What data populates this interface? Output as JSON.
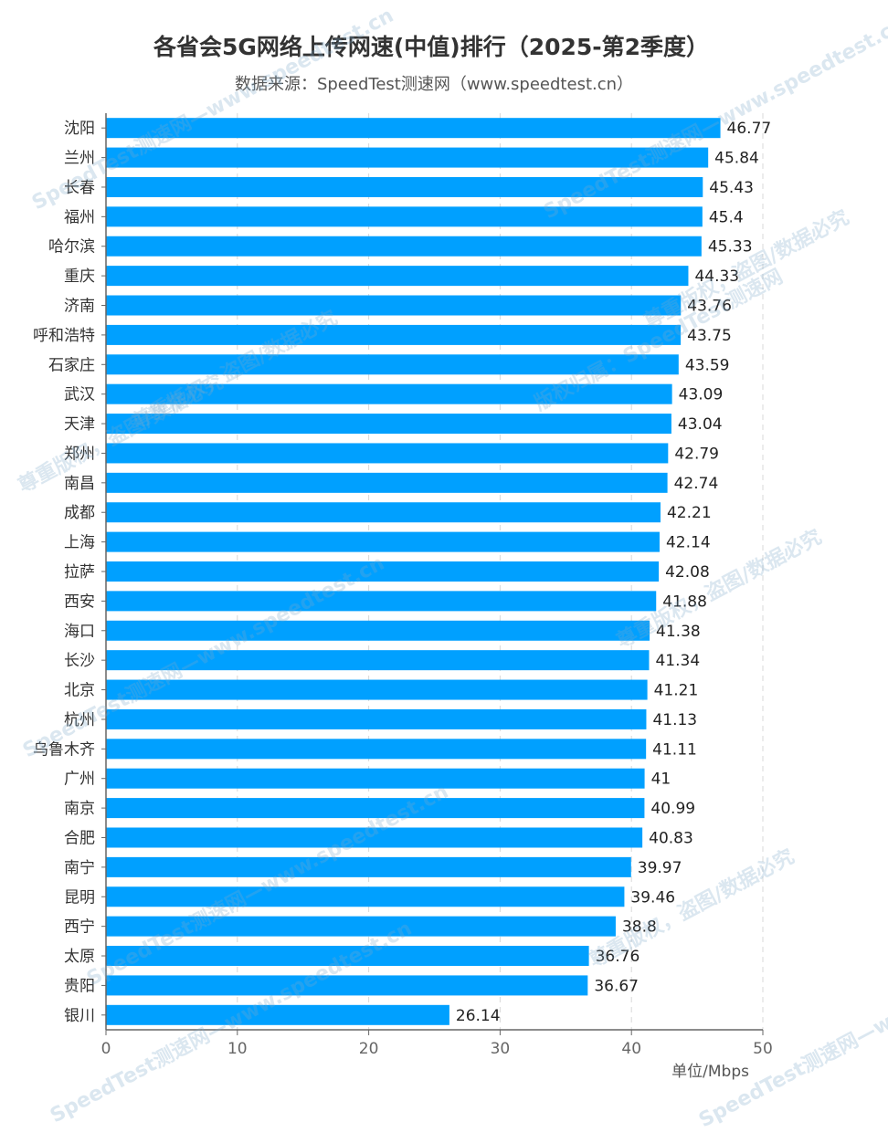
{
  "chart_data": {
    "type": "bar",
    "orientation": "horizontal",
    "title": "各省会5G网络上传网速(中值)排行（2025-第2季度）",
    "subtitle": "数据来源：SpeedTest测速网（www.speedtest.cn）",
    "unit_label": "单位/Mbps",
    "categories": [
      "沈阳",
      "兰州",
      "长春",
      "福州",
      "哈尔滨",
      "重庆",
      "济南",
      "呼和浩特",
      "石家庄",
      "武汉",
      "天津",
      "郑州",
      "南昌",
      "成都",
      "上海",
      "拉萨",
      "西安",
      "海口",
      "长沙",
      "北京",
      "杭州",
      "乌鲁木齐",
      "广州",
      "南京",
      "合肥",
      "南宁",
      "昆明",
      "西宁",
      "太原",
      "贵阳",
      "银川"
    ],
    "values": [
      46.77,
      45.84,
      45.43,
      45.4,
      45.33,
      44.33,
      43.76,
      43.75,
      43.59,
      43.09,
      43.04,
      42.79,
      42.74,
      42.21,
      42.14,
      42.08,
      41.88,
      41.38,
      41.34,
      41.21,
      41.13,
      41.11,
      41,
      40.99,
      40.83,
      39.97,
      39.46,
      38.8,
      36.76,
      36.67,
      26.14
    ],
    "value_labels": [
      "46.77",
      "45.84",
      "45.43",
      "45.4",
      "45.33",
      "44.33",
      "43.76",
      "43.75",
      "43.59",
      "43.09",
      "43.04",
      "42.79",
      "42.74",
      "42.21",
      "42.14",
      "42.08",
      "41.88",
      "41.38",
      "41.34",
      "41.21",
      "41.13",
      "41.11",
      "41",
      "40.99",
      "40.83",
      "39.97",
      "39.46",
      "38.8",
      "36.76",
      "36.67",
      "26.14"
    ],
    "xlim": [
      0,
      50
    ],
    "x_ticks": [
      0,
      10,
      20,
      30,
      40,
      50
    ],
    "x_tick_labels": [
      "0",
      "10",
      "20",
      "30",
      "40",
      "50"
    ],
    "grid": "vertical dashed",
    "bar_color": "#00a0ff",
    "axis_color": "#666666",
    "grid_color": "#d8d8d8"
  },
  "watermarks": [
    "SpeedTest测速网—www.speedtest.cn",
    "尊重版权，盗图/数据必究",
    "版权归属：SpeedTest测速网"
  ]
}
